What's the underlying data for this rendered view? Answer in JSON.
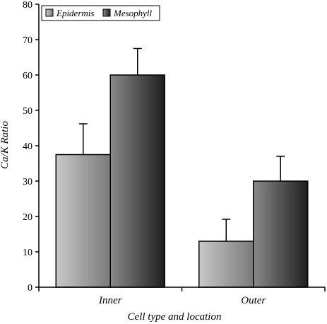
{
  "chart_data": {
    "type": "bar",
    "title": "",
    "xlabel": "Cell type and location",
    "ylabel": "Ca/K Ratio",
    "categories": [
      "Inner",
      "Outer"
    ],
    "ylim": [
      0,
      80
    ],
    "yticks": [
      0,
      10,
      20,
      30,
      40,
      50,
      60,
      70,
      80
    ],
    "series": [
      {
        "name": "Epidermis",
        "values": [
          37.5,
          13
        ],
        "errors": [
          8.7,
          6.2
        ]
      },
      {
        "name": "Mesophyll",
        "values": [
          60,
          30
        ],
        "errors": [
          7.5,
          7
        ]
      }
    ],
    "grid": false,
    "legend_position": "top-left",
    "colors": {
      "Epidermis": [
        "#c8c8c8",
        "#7a7a7a"
      ],
      "Mesophyll": [
        "#8a8a8a",
        "#1e1e1e"
      ]
    }
  }
}
